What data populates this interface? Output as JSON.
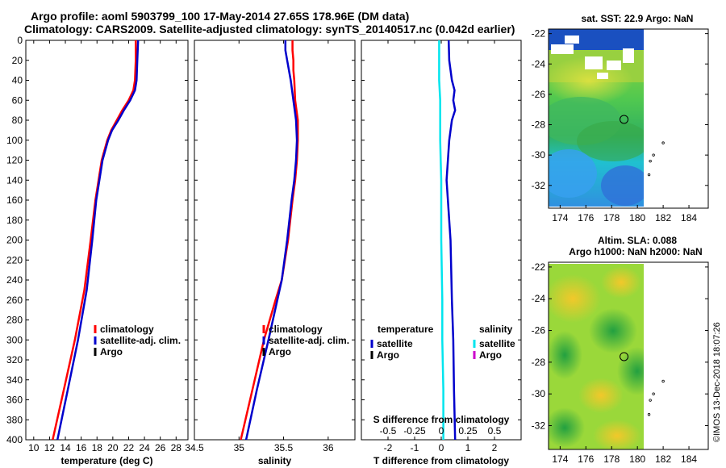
{
  "title_line1": "Argo profile: aoml 5903799_100 17-May-2014 27.65S 178.96E (DM data)",
  "title_line2": "Climatology: CARS2009. Satellite-adjusted climatology: synTS_20140517.nc (0.042d earlier)",
  "side_text": "©IMOS 13-Dec-2018 18:07:26",
  "map_sst": {
    "title": "sat. SST: 22.9 Argo: NaN",
    "lat_ticks": [
      -22,
      -24,
      -26,
      -28,
      -30,
      -32
    ],
    "lon_ticks": [
      174,
      176,
      178,
      180,
      182,
      184
    ],
    "lat_range": [
      -33.5,
      -21.7
    ],
    "lon_range": [
      173.1,
      185.5
    ],
    "argo_position": {
      "lon": 178.96,
      "lat": -27.65
    }
  },
  "map_sla": {
    "title1": "Altim. SLA: 0.088",
    "title2": "Argo h1000: NaN h2000: NaN",
    "lat_ticks": [
      -22,
      -24,
      -26,
      -28,
      -30,
      -32
    ],
    "lon_ticks": [
      174,
      176,
      178,
      180,
      182,
      184
    ],
    "lat_range": [
      -33.5,
      -21.7
    ],
    "lon_range": [
      173.1,
      185.5
    ],
    "argo_position": {
      "lon": 178.96,
      "lat": -27.65
    }
  },
  "colors": {
    "climatology": "#ff0000",
    "satellite": "#0000cc",
    "argo": "#000000",
    "satellite_salinity": "#00e5ee",
    "argo_salinity": "#cc00cc"
  },
  "chart_data": [
    {
      "type": "line",
      "xlabel": "temperature (deg C)",
      "ylabel": "",
      "xlim": [
        9,
        29.5
      ],
      "ylim": [
        400,
        0
      ],
      "x_ticks": [
        10,
        12,
        14,
        16,
        18,
        20,
        22,
        24,
        26,
        28
      ],
      "y_ticks": [
        0,
        20,
        40,
        60,
        80,
        100,
        120,
        140,
        160,
        180,
        200,
        220,
        240,
        260,
        280,
        300,
        320,
        340,
        360,
        380,
        400
      ],
      "legend": [
        {
          "key": "climatology",
          "label": "climatology"
        },
        {
          "key": "satellite",
          "label": "satellite-adj. clim."
        },
        {
          "key": "argo",
          "label": "Argo"
        }
      ],
      "series": [
        {
          "name": "climatology",
          "key": "climatology",
          "depth": [
            0,
            20,
            40,
            50,
            60,
            70,
            80,
            90,
            100,
            120,
            140,
            160,
            200,
            250,
            300,
            350,
            400
          ],
          "values": [
            22.9,
            22.9,
            22.8,
            22.6,
            22.0,
            21.2,
            20.5,
            19.8,
            19.3,
            18.6,
            18.2,
            17.8,
            17.2,
            16.4,
            15.2,
            13.8,
            12.4
          ]
        },
        {
          "name": "satellite-adj. clim.",
          "key": "satellite",
          "depth": [
            0,
            20,
            40,
            50,
            60,
            70,
            80,
            90,
            100,
            120,
            140,
            160,
            200,
            250,
            300,
            350,
            400
          ],
          "values": [
            23.2,
            23.1,
            23.0,
            22.8,
            22.2,
            21.4,
            20.7,
            19.9,
            19.4,
            18.7,
            18.3,
            17.9,
            17.4,
            16.7,
            15.6,
            14.3,
            13.0
          ]
        }
      ]
    },
    {
      "type": "line",
      "xlabel": "salinity",
      "ylabel": "",
      "xlim": [
        34.5,
        36.3
      ],
      "ylim": [
        400,
        0
      ],
      "x_ticks": [
        34.5,
        35,
        35.5,
        36
      ],
      "x_tick_labels": [
        "34.5",
        "35",
        "35.5",
        "36"
      ],
      "legend": [
        {
          "key": "climatology",
          "label": "climatology"
        },
        {
          "key": "satellite",
          "label": "satellite-adj. clim."
        },
        {
          "key": "argo",
          "label": "Argo"
        }
      ],
      "series": [
        {
          "name": "climatology",
          "key": "climatology",
          "depth": [
            0,
            10,
            20,
            30,
            40,
            60,
            80,
            100,
            120,
            140,
            160,
            200,
            240,
            260,
            300,
            350,
            400
          ],
          "values": [
            35.6,
            35.6,
            35.61,
            35.61,
            35.62,
            35.63,
            35.66,
            35.66,
            35.65,
            35.63,
            35.6,
            35.55,
            35.48,
            35.41,
            35.28,
            35.15,
            35.02
          ]
        },
        {
          "name": "satellite-adj. clim.",
          "key": "satellite",
          "depth": [
            0,
            10,
            20,
            30,
            40,
            60,
            80,
            100,
            120,
            140,
            160,
            200,
            240,
            260,
            300,
            350,
            400
          ],
          "values": [
            35.52,
            35.52,
            35.54,
            35.56,
            35.58,
            35.61,
            35.64,
            35.65,
            35.64,
            35.62,
            35.59,
            35.54,
            35.48,
            35.43,
            35.33,
            35.2,
            35.08
          ]
        }
      ]
    },
    {
      "type": "line",
      "xlabel": "T difference from climatology",
      "xlabel_top": "S difference from climatology",
      "xlim": [
        -3,
        3
      ],
      "ylim": [
        400,
        0
      ],
      "x_ticks": [
        -2,
        -1,
        0,
        1,
        2
      ],
      "x_tick_labels": [
        "-2",
        "-1",
        "0",
        "1",
        "2"
      ],
      "s_ticks": [
        -0.5,
        -0.25,
        0,
        0.25,
        0.5
      ],
      "s_tick_labels": [
        "-0.5",
        "-0.25",
        "0",
        "0.25",
        "0.5"
      ],
      "s_xlim": [
        -0.75,
        0.75
      ],
      "legend_temperature_title": "temperature",
      "legend_salinity_title": "salinity",
      "legend_temperature": [
        {
          "key": "satellite",
          "label": "satellite"
        },
        {
          "key": "argo",
          "label": "Argo"
        }
      ],
      "legend_salinity": [
        {
          "key": "satellite_salinity",
          "label": "satellite"
        },
        {
          "key": "argo_salinity",
          "label": "Argo"
        }
      ],
      "series": [
        {
          "name": "temperature satellite",
          "key": "satellite",
          "depth": [
            0,
            20,
            40,
            50,
            60,
            70,
            80,
            100,
            140,
            200,
            260,
            300,
            350,
            400
          ],
          "values": [
            0.28,
            0.3,
            0.4,
            0.5,
            0.45,
            0.52,
            0.4,
            0.3,
            0.2,
            0.35,
            0.4,
            0.45,
            0.48,
            0.52
          ]
        },
        {
          "name": "salinity satellite",
          "key": "satellite_salinity",
          "depth": [
            0,
            20,
            40,
            60,
            80,
            100,
            120,
            140,
            200,
            260,
            300,
            350,
            400
          ],
          "values": [
            -0.02,
            -0.02,
            -0.02,
            -0.01,
            -0.01,
            -0.01,
            -0.005,
            0.0,
            0.0,
            0.01,
            0.01,
            0.02,
            0.02
          ]
        }
      ]
    }
  ]
}
